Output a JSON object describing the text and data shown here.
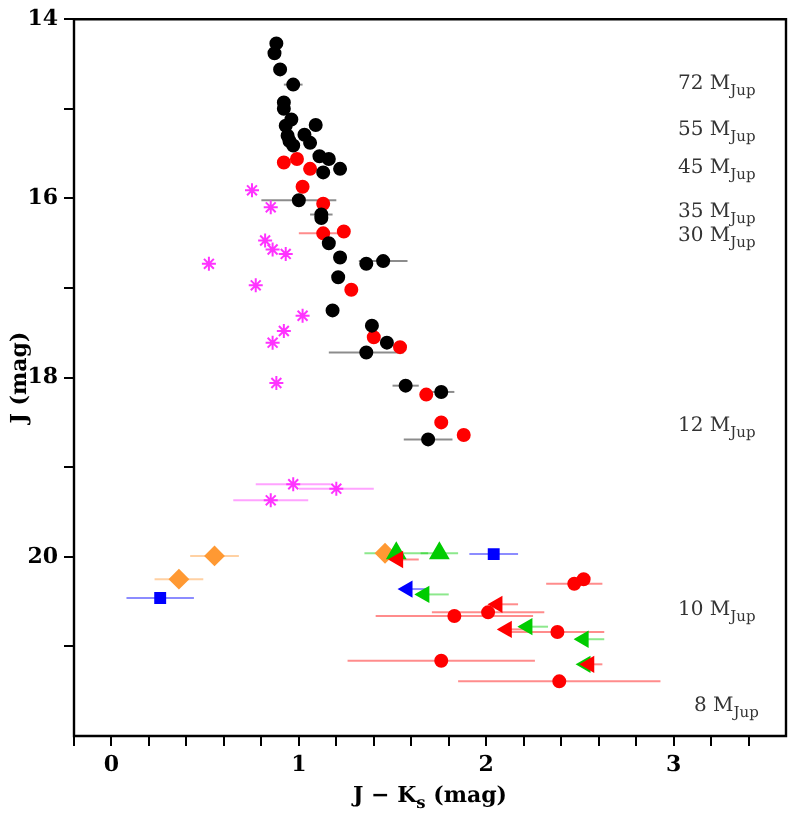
{
  "chart_data": {
    "type": "scatter",
    "xlabel": "J − K$_{s}$ (mag)",
    "ylabel": "J (mag)",
    "xlim": [
      -0.2,
      3.6
    ],
    "ylim": [
      22,
      14
    ],
    "xticks": [
      {
        "value": -0.2,
        "label": null
      },
      0,
      {
        "value": 0.2,
        "label": null
      },
      {
        "value": 0.4,
        "label": null
      },
      {
        "value": 0.6,
        "label": null
      },
      {
        "value": 0.8,
        "label": null
      },
      1,
      {
        "value": 1.2,
        "label": null
      },
      {
        "value": 1.4,
        "label": null
      },
      {
        "value": 1.6,
        "label": null
      },
      {
        "value": 1.8,
        "label": null
      },
      2,
      {
        "value": 2.2,
        "label": null
      },
      {
        "value": 2.4,
        "label": null
      },
      {
        "value": 2.6,
        "label": null
      },
      {
        "value": 2.8,
        "label": null
      },
      3,
      {
        "value": 3.2,
        "label": null
      },
      {
        "value": 3.4,
        "label": null
      }
    ],
    "yticks": [
      14,
      {
        "value": 15,
        "label": null
      },
      16,
      {
        "value": 17,
        "label": null
      },
      18,
      {
        "value": 19,
        "label": null
      },
      20,
      {
        "value": 21,
        "label": null
      }
    ],
    "grid": false,
    "legend": false,
    "series": [
      {
        "color": "#000000",
        "marker": "circle",
        "x": [
          0.88,
          0.87,
          0.9,
          0.97,
          0.92,
          0.92,
          0.96,
          0.93,
          1.09,
          0.94,
          1.03,
          0.95,
          1.06,
          0.97,
          1.11,
          1.16,
          1.13,
          1.22,
          1.0,
          1.12,
          1.12,
          1.16,
          1.22,
          1.36,
          1.45,
          1.21,
          1.18,
          1.39,
          1.47,
          1.36,
          1.57,
          1.76,
          1.69
        ],
        "values": [
          14.27,
          14.38,
          14.56,
          14.73,
          14.93,
          15.0,
          15.12,
          15.19,
          15.18,
          15.3,
          15.29,
          15.36,
          15.38,
          15.41,
          15.53,
          15.56,
          15.71,
          15.67,
          16.02,
          16.18,
          16.22,
          16.5,
          16.66,
          16.73,
          16.7,
          16.88,
          17.25,
          17.42,
          17.61,
          17.72,
          18.09,
          18.16,
          18.69
        ],
        "xerrors": [
          null,
          null,
          null,
          0.05,
          null,
          null,
          null,
          null,
          null,
          null,
          null,
          null,
          null,
          null,
          null,
          null,
          null,
          null,
          0.2,
          0.06,
          null,
          null,
          null,
          null,
          0.13,
          null,
          null,
          null,
          null,
          0.2,
          0.07,
          0.07,
          0.13
        ]
      },
      {
        "color": "#ff0000",
        "marker": "circle",
        "x": [
          0.92,
          0.99,
          1.06,
          1.02,
          1.13,
          1.13,
          1.24,
          1.28,
          1.4,
          1.54,
          1.68,
          1.76,
          1.88,
          2.47,
          2.52,
          1.83,
          2.01,
          2.38,
          1.76
        ],
        "values": [
          15.6,
          15.56,
          15.67,
          15.87,
          16.06,
          16.39,
          16.37,
          17.02,
          17.55,
          17.66,
          18.19,
          18.5,
          18.64,
          20.3,
          20.25,
          20.66,
          20.62,
          20.84,
          21.16
        ],
        "xerrors": [
          null,
          null,
          null,
          null,
          null,
          0.13,
          null,
          null,
          null,
          null,
          null,
          null,
          null,
          0.15,
          null,
          0.42,
          0.3,
          0.25,
          0.5
        ]
      },
      {
        "color": "#ff0000",
        "marker": "circle",
        "x": [
          2.39
        ],
        "values": [
          21.39
        ],
        "xerrors": [
          [
            1.85,
            2.93
          ]
        ]
      },
      {
        "color": "#ff0000",
        "x": [
          2.06,
          2.11,
          2.55,
          1.53
        ],
        "values": [
          20.53,
          20.81,
          21.2,
          20.03
        ],
        "xerrors": [
          [
            2.06,
            2.17
          ],
          [
            2.11,
            2.22
          ],
          [
            2.55,
            2.62
          ],
          [
            1.53,
            1.64
          ]
        ]
      },
      {
        "color": "#00cc00",
        "x": [
          1.67,
          2.22,
          2.52,
          2.53
        ],
        "values": [
          20.42,
          20.78,
          20.92,
          21.2
        ],
        "xerrors": [
          [
            1.67,
            1.8
          ],
          [
            2.22,
            2.33
          ],
          [
            2.52,
            2.63
          ],
          null
        ]
      },
      {
        "color": "#0000ff",
        "x": [
          1.58
        ],
        "values": [
          20.36
        ],
        "xerrors": [
          [
            1.58,
            1.68
          ]
        ]
      },
      {
        "color": "#00cc00",
        "marker": "triangle",
        "x": [
          1.52,
          1.75
        ],
        "values": [
          19.96,
          19.96
        ],
        "xerrors": [
          0.17,
          0.1
        ]
      },
      {
        "color": "#0000ff",
        "marker": "square",
        "x": [
          2.04,
          0.26
        ],
        "values": [
          19.97,
          20.46
        ],
        "xerrors": [
          0.13,
          0.18
        ]
      },
      {
        "color": "#ff9933",
        "marker": "diamond",
        "x": [
          0.55,
          0.36,
          1.46
        ],
        "values": [
          19.99,
          20.25,
          19.96
        ],
        "xerrors": [
          0.13,
          0.13,
          null
        ]
      },
      {
        "color": "#ff33ff",
        "marker": "cross",
        "x": [
          0.75,
          0.85,
          0.82,
          0.86,
          0.93,
          0.52,
          0.77,
          1.02,
          0.92,
          0.86,
          0.88,
          0.97,
          0.85,
          1.2
        ],
        "values": [
          15.91,
          16.1,
          16.47,
          16.57,
          16.62,
          16.73,
          16.97,
          17.31,
          17.48,
          17.61,
          18.06,
          19.19,
          19.37,
          19.24
        ],
        "xerrors": [
          null,
          null,
          null,
          null,
          null,
          null,
          null,
          null,
          null,
          null,
          null,
          0.2,
          0.2,
          0.2
        ]
      }
    ],
    "annotations": [
      "72 M$_{Jup}$",
      "55 M$_{Jup}$",
      "45 M$_{Jup}$",
      "35 M$_{Jup}$",
      "30 M$_{Jup}$",
      "12 M$_{Jup}$",
      "10 M$_{Jup}$",
      "8 M$_{Jup}$"
    ]
  }
}
